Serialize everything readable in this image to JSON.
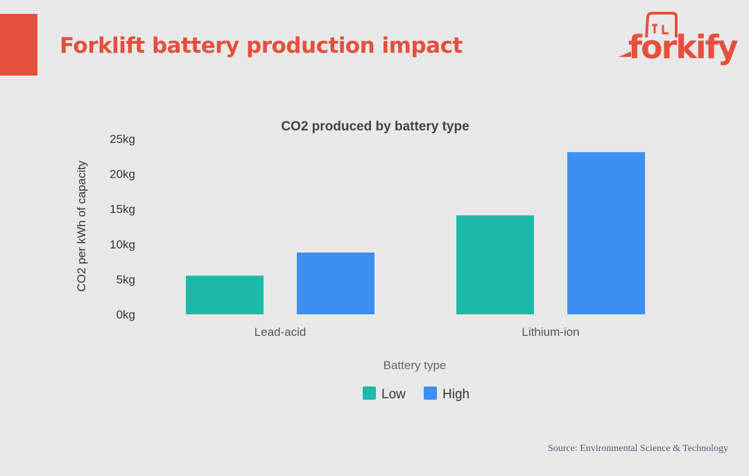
{
  "header": {
    "title": "Forklift battery production impact",
    "logo_text": "forkify"
  },
  "source": "Source: Environmental Science & Technology",
  "colors": {
    "accent": "#e5503c",
    "low": "#1db9a8",
    "high": "#3d8ff2"
  },
  "chart_data": {
    "type": "bar",
    "title": "CO2 produced by battery type",
    "xlabel": "Battery type",
    "ylabel": "CO2 per kWh of capacity",
    "categories": [
      "Lead-acid",
      "Lithium-ion"
    ],
    "series": [
      {
        "name": "Low",
        "values": [
          5.5,
          14.1
        ]
      },
      {
        "name": "High",
        "values": [
          8.8,
          23.1
        ]
      }
    ],
    "ylim": [
      0,
      25
    ],
    "yticks": [
      "0kg",
      "5kg",
      "10kg",
      "15kg",
      "20kg",
      "25kg"
    ],
    "grid": false,
    "legend": "bottom"
  }
}
